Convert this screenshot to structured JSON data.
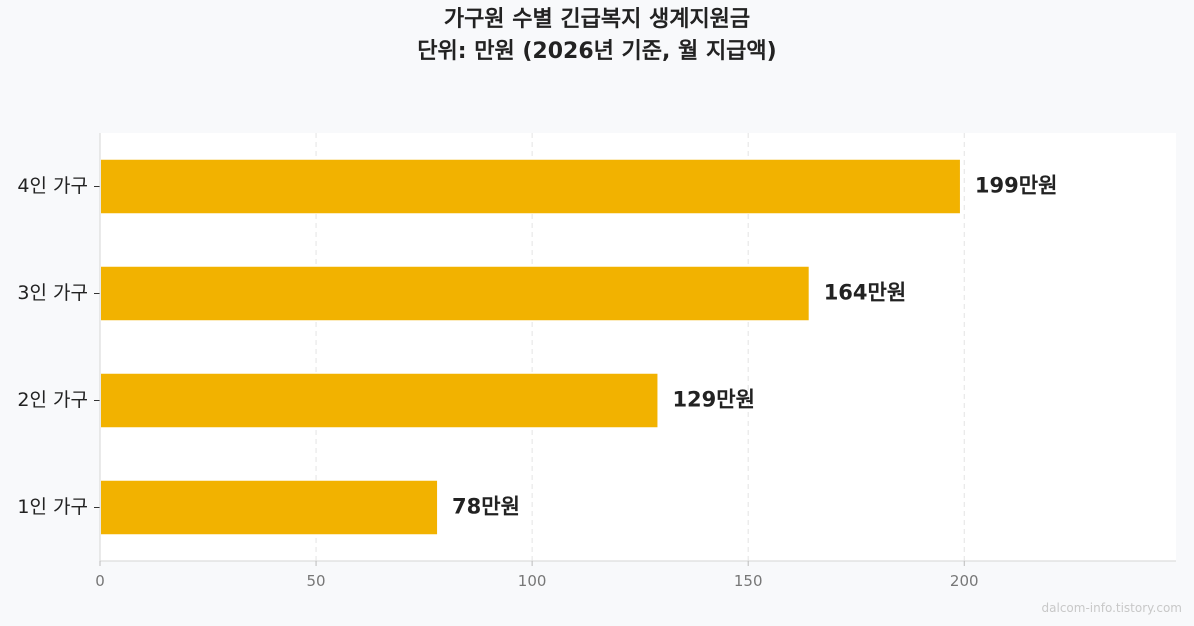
{
  "chart_data": {
    "type": "bar",
    "orientation": "horizontal",
    "title": "가구원 수별 긴급복지 생계지원금",
    "subtitle": "단위: 만원 (2026년 기준, 월 지급액)",
    "categories": [
      "4인 가구",
      "3인 가구",
      "2인 가구",
      "1인 가구"
    ],
    "values": [
      199,
      164,
      129,
      78
    ],
    "value_labels": [
      "199만원",
      "164만원",
      "129만원",
      "78만원"
    ],
    "xlim": [
      0,
      249
    ],
    "xticks": [
      0,
      50,
      100,
      150,
      200
    ],
    "xtick_labels": [
      "0",
      "50",
      "100",
      "150",
      "200"
    ],
    "grid": true,
    "bar_color": "#F2B200"
  },
  "watermark": "dalcom-info.tistory.com"
}
